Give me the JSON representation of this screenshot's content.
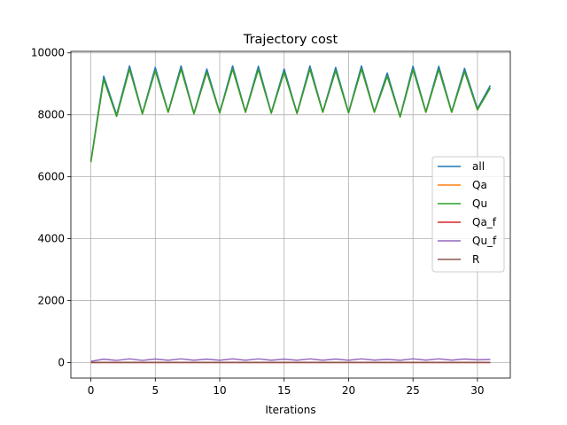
{
  "chart_data": {
    "type": "line",
    "title": "Trajectory cost",
    "xlabel": "Iterations",
    "ylabel": "",
    "xlim": [
      -1.55,
      32.55
    ],
    "ylim": [
      -500,
      10050
    ],
    "xticks": [
      0,
      5,
      10,
      15,
      20,
      25,
      30
    ],
    "yticks": [
      0,
      2000,
      4000,
      6000,
      8000,
      10000
    ],
    "grid": true,
    "legend_position": "center-right",
    "x": [
      0,
      1,
      2,
      3,
      4,
      5,
      6,
      7,
      8,
      9,
      10,
      11,
      12,
      13,
      14,
      15,
      16,
      17,
      18,
      19,
      20,
      21,
      22,
      23,
      24,
      25,
      26,
      27,
      28,
      29,
      30,
      31
    ],
    "series": [
      {
        "name": "all",
        "color": "#1f77b4",
        "values": [
          6500,
          9250,
          8000,
          9580,
          8050,
          9530,
          8100,
          9580,
          8050,
          9480,
          8080,
          9580,
          8100,
          9570,
          8070,
          9480,
          8060,
          9580,
          8100,
          9530,
          8080,
          9580,
          8100,
          9350,
          7950,
          9570,
          8100,
          9570,
          8100,
          9500,
          8200,
          8950
        ]
      },
      {
        "name": "Qa",
        "color": "#ff7f0e",
        "values": [
          6470,
          9150,
          7950,
          9480,
          8030,
          9430,
          8080,
          9480,
          8030,
          9380,
          8060,
          9480,
          8080,
          9470,
          8050,
          9380,
          8040,
          9480,
          8080,
          9430,
          8060,
          9480,
          8080,
          9250,
          7930,
          9470,
          8080,
          9470,
          8080,
          9400,
          8160,
          8870
        ]
      },
      {
        "name": "Qu",
        "color": "#2ca02c",
        "values": [
          6470,
          9150,
          7950,
          9480,
          8030,
          9430,
          8080,
          9480,
          8030,
          9380,
          8060,
          9480,
          8080,
          9470,
          8050,
          9380,
          8040,
          9480,
          8080,
          9430,
          8060,
          9480,
          8080,
          9250,
          7930,
          9470,
          8080,
          9470,
          8080,
          9400,
          8160,
          8870
        ]
      },
      {
        "name": "Qa_f",
        "color": "#d62728",
        "values": [
          0,
          0,
          0,
          0,
          0,
          0,
          0,
          0,
          0,
          0,
          0,
          0,
          0,
          0,
          0,
          0,
          0,
          0,
          0,
          0,
          0,
          0,
          0,
          0,
          0,
          0,
          0,
          0,
          0,
          0,
          0,
          0
        ]
      },
      {
        "name": "Qu_f",
        "color": "#9467bd",
        "values": [
          40,
          110,
          70,
          120,
          70,
          115,
          75,
          120,
          75,
          110,
          75,
          120,
          75,
          120,
          75,
          110,
          75,
          120,
          75,
          115,
          75,
          120,
          80,
          105,
          75,
          120,
          80,
          120,
          80,
          115,
          90,
          100
        ]
      },
      {
        "name": "R",
        "color": "#8c564b",
        "values": [
          5,
          8,
          6,
          8,
          6,
          8,
          6,
          8,
          6,
          8,
          6,
          8,
          6,
          8,
          6,
          8,
          6,
          8,
          6,
          8,
          6,
          8,
          6,
          8,
          6,
          8,
          6,
          8,
          6,
          8,
          6,
          8
        ]
      }
    ]
  }
}
